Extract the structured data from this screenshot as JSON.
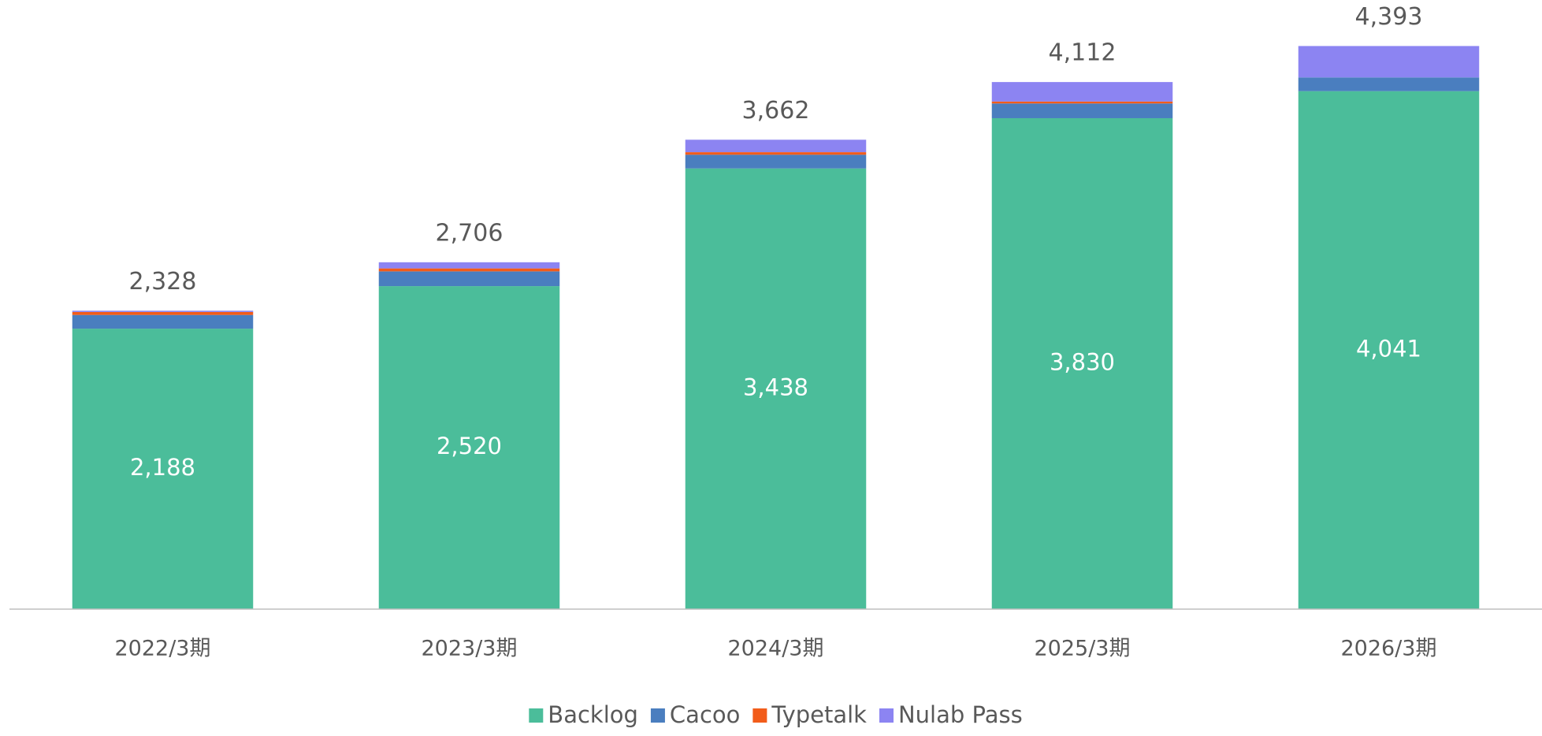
{
  "chart_data": {
    "type": "stacked_bar",
    "categories": [
      "2022/3期",
      "2023/3期",
      "2024/3期",
      "2025/3期",
      "2026/3期"
    ],
    "series": [
      {
        "name": "Backlog",
        "color": "#4bbd9a",
        "values": [
          2188,
          2520,
          3438,
          3830,
          4041
        ],
        "value_labels": [
          "2,188",
          "2,520",
          "3,438",
          "3,830",
          "4,041"
        ]
      },
      {
        "name": "Cacoo",
        "color": "#4a7ebf",
        "values": [
          107,
          115,
          107,
          115,
          107
        ]
      },
      {
        "name": "Typetalk",
        "color": "#f25c1a",
        "values": [
          23,
          23,
          20,
          15,
          0
        ]
      },
      {
        "name": "Nulab Pass",
        "color": "#8c84f2",
        "values": [
          10,
          48,
          97,
          152,
          245
        ]
      }
    ],
    "totals": [
      2328,
      2706,
      3662,
      4112,
      4393
    ],
    "total_labels": [
      "2,328",
      "2,706",
      "3,662",
      "4,112",
      "4,393"
    ],
    "ylim": [
      0,
      4500
    ],
    "legend": "bottom"
  }
}
